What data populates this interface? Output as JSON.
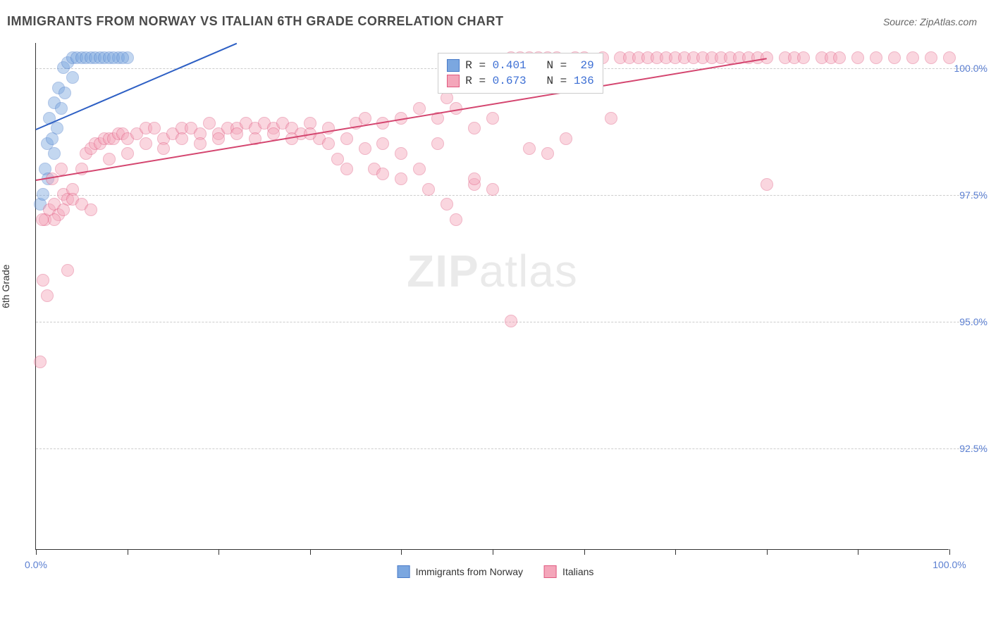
{
  "title": "IMMIGRANTS FROM NORWAY VS ITALIAN 6TH GRADE CORRELATION CHART",
  "source": "Source: ZipAtlas.com",
  "y_axis_label": "6th Grade",
  "watermark_bold": "ZIP",
  "watermark_light": "atlas",
  "chart": {
    "type": "scatter",
    "x_domain": [
      0,
      100
    ],
    "y_domain": [
      90.5,
      100.5
    ],
    "x_ticks": [
      0,
      10,
      20,
      30,
      40,
      50,
      60,
      70,
      80,
      90,
      100
    ],
    "x_tick_labels": {
      "0": "0.0%",
      "100": "100.0%"
    },
    "y_ticks": [
      92.5,
      95.0,
      97.5,
      100.0
    ],
    "y_tick_labels": [
      "92.5%",
      "95.0%",
      "97.5%",
      "100.0%"
    ],
    "background_color": "#ffffff",
    "grid_color": "#cccccc",
    "axis_color": "#333333",
    "tick_label_color": "#5b7fd1",
    "point_radius": 9,
    "point_opacity": 0.45,
    "series": [
      {
        "name": "Immigrants from Norway",
        "color_fill": "#7ba7e0",
        "color_stroke": "#4a7bc8",
        "trend": {
          "x1": 0,
          "y1": 98.8,
          "x2": 22,
          "y2": 100.5,
          "color": "#2d5fc4",
          "width": 2
        },
        "stats": {
          "R": "0.401",
          "N": "29"
        },
        "points": [
          [
            0.5,
            97.3
          ],
          [
            1,
            98.0
          ],
          [
            1.2,
            98.5
          ],
          [
            1.5,
            99.0
          ],
          [
            2,
            99.3
          ],
          [
            2.5,
            99.6
          ],
          [
            3,
            100.0
          ],
          [
            3.5,
            100.1
          ],
          [
            4,
            100.2
          ],
          [
            4.5,
            100.2
          ],
          [
            5,
            100.2
          ],
          [
            5.5,
            100.2
          ],
          [
            6,
            100.2
          ],
          [
            6.5,
            100.2
          ],
          [
            7,
            100.2
          ],
          [
            7.5,
            100.2
          ],
          [
            8,
            100.2
          ],
          [
            9,
            100.2
          ],
          [
            10,
            100.2
          ],
          [
            2,
            98.3
          ],
          [
            2.3,
            98.8
          ],
          [
            2.8,
            99.2
          ],
          [
            3.2,
            99.5
          ],
          [
            1.8,
            98.6
          ],
          [
            1.3,
            97.8
          ],
          [
            0.8,
            97.5
          ],
          [
            4,
            99.8
          ],
          [
            8.5,
            100.2
          ],
          [
            9.5,
            100.2
          ]
        ]
      },
      {
        "name": "Italians",
        "color_fill": "#f4a6ba",
        "color_stroke": "#e05a80",
        "trend": {
          "x1": 0,
          "y1": 97.8,
          "x2": 80,
          "y2": 100.2,
          "color": "#d4456f",
          "width": 2
        },
        "stats": {
          "R": "0.673",
          "N": "136"
        },
        "points": [
          [
            0.5,
            94.2
          ],
          [
            0.8,
            95.8
          ],
          [
            1,
            97.0
          ],
          [
            1.5,
            97.2
          ],
          [
            2,
            97.3
          ],
          [
            2.5,
            97.1
          ],
          [
            3,
            97.5
          ],
          [
            3.5,
            97.4
          ],
          [
            4,
            97.6
          ],
          [
            5,
            98.0
          ],
          [
            5.5,
            98.3
          ],
          [
            6,
            98.4
          ],
          [
            6.5,
            98.5
          ],
          [
            7,
            98.5
          ],
          [
            7.5,
            98.6
          ],
          [
            8,
            98.6
          ],
          [
            8.5,
            98.6
          ],
          [
            9,
            98.7
          ],
          [
            9.5,
            98.7
          ],
          [
            10,
            98.6
          ],
          [
            11,
            98.7
          ],
          [
            12,
            98.8
          ],
          [
            13,
            98.8
          ],
          [
            14,
            98.6
          ],
          [
            15,
            98.7
          ],
          [
            16,
            98.8
          ],
          [
            17,
            98.8
          ],
          [
            18,
            98.7
          ],
          [
            19,
            98.9
          ],
          [
            20,
            98.7
          ],
          [
            21,
            98.8
          ],
          [
            22,
            98.8
          ],
          [
            23,
            98.9
          ],
          [
            24,
            98.8
          ],
          [
            25,
            98.9
          ],
          [
            26,
            98.8
          ],
          [
            27,
            98.9
          ],
          [
            28,
            98.8
          ],
          [
            29,
            98.7
          ],
          [
            30,
            98.9
          ],
          [
            31,
            98.6
          ],
          [
            32,
            98.8
          ],
          [
            33,
            98.2
          ],
          [
            34,
            98.0
          ],
          [
            35,
            98.9
          ],
          [
            36,
            98.4
          ],
          [
            37,
            98.0
          ],
          [
            38,
            98.9
          ],
          [
            40,
            99.0
          ],
          [
            42,
            99.2
          ],
          [
            43,
            97.6
          ],
          [
            44,
            99.0
          ],
          [
            45,
            99.4
          ],
          [
            46,
            97.0
          ],
          [
            48,
            97.7
          ],
          [
            50,
            99.0
          ],
          [
            52,
            100.2
          ],
          [
            53,
            100.2
          ],
          [
            54,
            100.2
          ],
          [
            55,
            100.2
          ],
          [
            56,
            100.2
          ],
          [
            57,
            100.2
          ],
          [
            58,
            98.6
          ],
          [
            59,
            100.2
          ],
          [
            60,
            100.2
          ],
          [
            62,
            100.2
          ],
          [
            63,
            99.0
          ],
          [
            64,
            100.2
          ],
          [
            65,
            100.2
          ],
          [
            66,
            100.2
          ],
          [
            67,
            100.2
          ],
          [
            68,
            100.2
          ],
          [
            69,
            100.2
          ],
          [
            70,
            100.2
          ],
          [
            71,
            100.2
          ],
          [
            72,
            100.2
          ],
          [
            73,
            100.2
          ],
          [
            74,
            100.2
          ],
          [
            75,
            100.2
          ],
          [
            76,
            100.2
          ],
          [
            77,
            100.2
          ],
          [
            78,
            100.2
          ],
          [
            79,
            100.2
          ],
          [
            80,
            100.2
          ],
          [
            82,
            100.2
          ],
          [
            83,
            100.2
          ],
          [
            84,
            100.2
          ],
          [
            86,
            100.2
          ],
          [
            87,
            100.2
          ],
          [
            88,
            100.2
          ],
          [
            90,
            100.2
          ],
          [
            92,
            100.2
          ],
          [
            94,
            100.2
          ],
          [
            96,
            100.2
          ],
          [
            98,
            100.2
          ],
          [
            100,
            100.2
          ],
          [
            2,
            97.0
          ],
          [
            3,
            97.2
          ],
          [
            4,
            97.4
          ],
          [
            5,
            97.3
          ],
          [
            6,
            97.2
          ],
          [
            8,
            98.2
          ],
          [
            10,
            98.3
          ],
          [
            12,
            98.5
          ],
          [
            14,
            98.4
          ],
          [
            16,
            98.6
          ],
          [
            18,
            98.5
          ],
          [
            20,
            98.6
          ],
          [
            22,
            98.7
          ],
          [
            24,
            98.6
          ],
          [
            26,
            98.7
          ],
          [
            28,
            98.6
          ],
          [
            30,
            98.7
          ],
          [
            32,
            98.5
          ],
          [
            34,
            98.6
          ],
          [
            36,
            99.0
          ],
          [
            38,
            97.9
          ],
          [
            40,
            98.3
          ],
          [
            42,
            98.0
          ],
          [
            44,
            98.5
          ],
          [
            46,
            99.2
          ],
          [
            48,
            98.8
          ],
          [
            50,
            97.6
          ],
          [
            52,
            95.0
          ],
          [
            54,
            98.4
          ],
          [
            56,
            98.3
          ],
          [
            80,
            97.7
          ],
          [
            3.5,
            96.0
          ],
          [
            1.2,
            95.5
          ],
          [
            0.7,
            97.0
          ],
          [
            1.8,
            97.8
          ],
          [
            2.8,
            98.0
          ],
          [
            38,
            98.5
          ],
          [
            40,
            97.8
          ],
          [
            45,
            97.3
          ],
          [
            48,
            97.8
          ]
        ]
      }
    ]
  },
  "stats_box": {
    "label_R": "R =",
    "label_N": "N =",
    "value_color": "#3d6fd4"
  },
  "bottom_legend": [
    {
      "swatch_fill": "#7ba7e0",
      "swatch_stroke": "#4a7bc8",
      "label": "Immigrants from Norway"
    },
    {
      "swatch_fill": "#f4a6ba",
      "swatch_stroke": "#e05a80",
      "label": "Italians"
    }
  ]
}
